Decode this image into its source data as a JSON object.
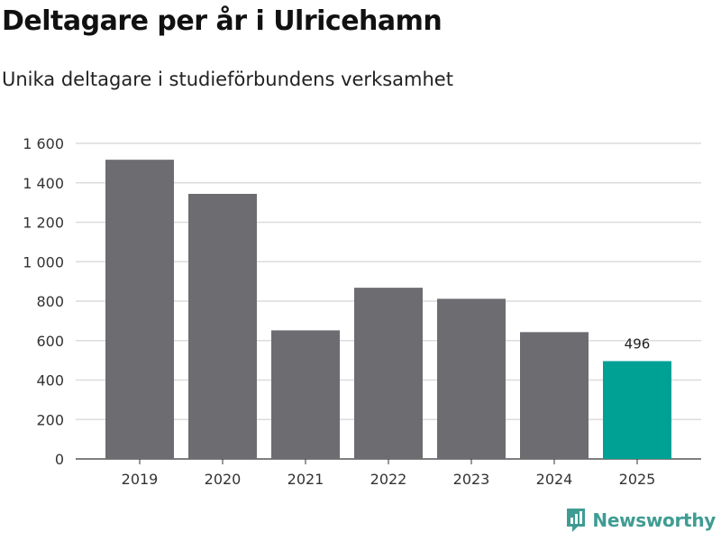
{
  "chart_data": {
    "type": "bar",
    "title": "Deltagare per år i Ulricehamn",
    "subtitle": "Unika deltagare i studieförbundens verksamhet",
    "xlabel": "",
    "ylabel": "",
    "categories": [
      "2019",
      "2020",
      "2021",
      "2022",
      "2023",
      "2024",
      "2025"
    ],
    "values": [
      1517,
      1344,
      652,
      868,
      812,
      643,
      496
    ],
    "ylim": [
      0,
      1600
    ],
    "yticks": [
      0,
      200,
      400,
      600,
      800,
      1000,
      1200,
      1400,
      1600
    ],
    "ytick_labels": [
      "0",
      "200",
      "400",
      "600",
      "800",
      "1 000",
      "1 200",
      "1 400",
      "1 600"
    ],
    "grid": true,
    "bar_color": "#6d6c71",
    "highlight_color": "#00a195",
    "highlight_index": 6,
    "data_labels": [
      {
        "index": 6,
        "text": "496"
      }
    ]
  },
  "brand": {
    "name": "Newsworthy",
    "icon": "newsworthy-logo-icon",
    "color": "#3f9c93"
  }
}
